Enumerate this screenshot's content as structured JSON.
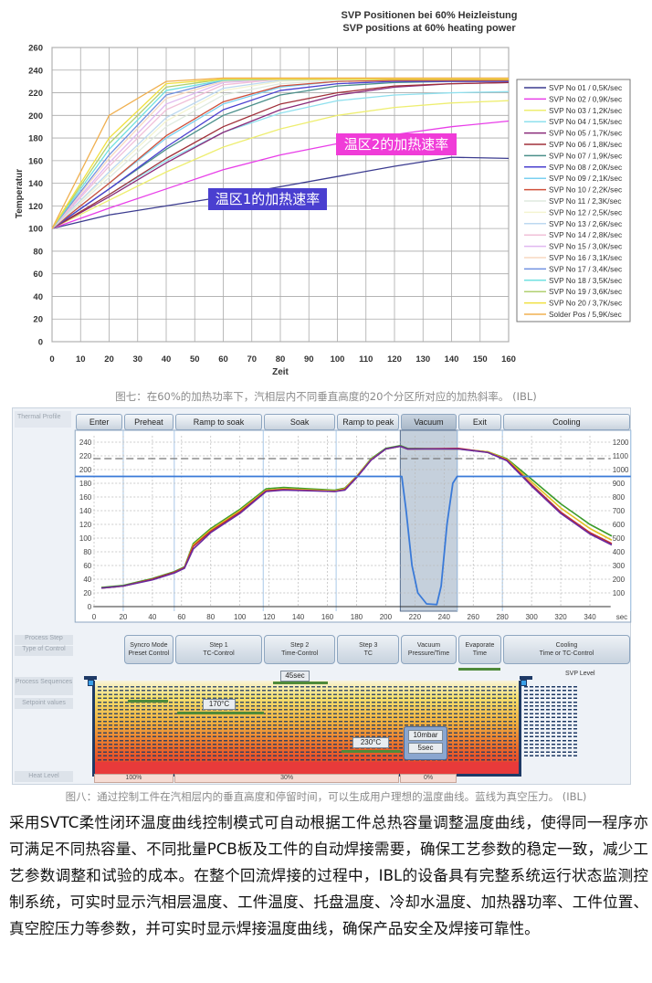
{
  "figure1": {
    "caption": "图七：在60%的加热功率下，汽相层内不同垂直高度的20个分区所对应的加热斜率。 (IBL)",
    "annotation_zone2": "温区2的加热速率",
    "annotation_zone1": "温区1的加热速率",
    "colors": {
      "annotation_zone2": "#f03cd8",
      "annotation_zone1": "#4a3fd0"
    }
  },
  "figure2": {
    "caption": "图八：通过控制工件在汽相层内的垂直高度和停留时间，可以生成用户理想的温度曲线。蓝线为真空压力。 (IBL)",
    "thermal_profile_label": "Thermal Profile",
    "phases": [
      {
        "label": "Enter",
        "start": -13,
        "end": 20
      },
      {
        "label": "Preheat",
        "start": 20,
        "end": 55
      },
      {
        "label": "Ramp to soak",
        "start": 55,
        "end": 116
      },
      {
        "label": "Soak",
        "start": 116,
        "end": 166
      },
      {
        "label": "Ramp to peak",
        "start": 166,
        "end": 210
      },
      {
        "label": "Vacuum",
        "start": 210,
        "end": 249
      },
      {
        "label": "Exit",
        "start": 249,
        "end": 280
      },
      {
        "label": "Cooling",
        "start": 280,
        "end": 368
      }
    ],
    "left_labels": {
      "process_step": "Process Step",
      "type_of_control": "Type of Control",
      "process_sequences": "Process Sequences",
      "setpoint_values": "Setpoint values",
      "heat_level": "Heat Level"
    },
    "steps": [
      {
        "line1": "Syncro Mode",
        "line2": "Preset Control",
        "start": 20,
        "end": 55
      },
      {
        "line1": "Step 1",
        "line2": "TC-Control",
        "start": 55,
        "end": 116
      },
      {
        "line1": "Step 2",
        "line2": "Time-Control",
        "start": 116,
        "end": 166
      },
      {
        "line1": "Step 3",
        "line2": "TC",
        "start": 166,
        "end": 210
      },
      {
        "line1": "Vacuum",
        "line2": "Pressure/Time",
        "start": 210,
        "end": 249
      },
      {
        "line1": "Evaporate",
        "line2": "Time",
        "start": 249,
        "end": 280
      },
      {
        "line1": "Cooling",
        "line2": "Time or TC-Control",
        "start": 280,
        "end": 368
      }
    ],
    "setpoints": {
      "soak_time": "45sec",
      "step1_temp": "170°C",
      "step3_temp": "230°C",
      "vac_pressure": "10mbar",
      "vac_time": "5sec"
    },
    "svp_level_label": "SVP Level",
    "heat_levels": [
      {
        "label": "100%",
        "start": -13,
        "end": 55
      },
      {
        "label": "30%",
        "start": 55,
        "end": 210
      },
      {
        "label": "0%",
        "start": 210,
        "end": 249
      }
    ]
  },
  "paragraph": "采用SVTC柔性闭环温度曲线控制模式可自动根据工件总热容量调整温度曲线，使得同一程序亦可满足不同热容量、不同批量PCB板及工件的自动焊接需要，确保工艺参数的稳定一致，减少工艺参数调整和试验的成本。在整个回流焊接的过程中，IBL的设备具有完整系统运行状态监测控制系统，可实时显示汽相层温度、工件温度、托盘温度、冷却水温度、加热器功率、工件位置、真空腔压力等参数，并可实时显示焊接温度曲线，确保产品安全及焊接可靠性。",
  "chart_data": [
    {
      "type": "line",
      "title": "SVP Positionen bei 60% Heizleistung",
      "subtitle": "SVP positions at 60% heating power",
      "xlabel": "Zeit",
      "ylabel": "Temperatur",
      "xlim": [
        0,
        160
      ],
      "ylim": [
        0,
        260
      ],
      "xticks": [
        0,
        10,
        20,
        30,
        40,
        50,
        60,
        70,
        80,
        90,
        100,
        110,
        120,
        130,
        140,
        150,
        160
      ],
      "yticks": [
        0,
        20,
        40,
        60,
        80,
        100,
        120,
        140,
        160,
        180,
        200,
        220,
        240,
        260
      ],
      "grid": true,
      "legend_position": "right",
      "x": [
        0,
        20,
        40,
        60,
        80,
        100,
        120,
        140,
        160
      ],
      "series": [
        {
          "name": "SVP No 01 / 0,5K/sec",
          "color": "#3b3b8f",
          "values": [
            100,
            112,
            120,
            128,
            137,
            146,
            155,
            163,
            162
          ]
        },
        {
          "name": "SVP No 02 / 0,9K/sec",
          "color": "#e83ee8",
          "values": [
            100,
            118,
            135,
            152,
            165,
            175,
            183,
            190,
            195
          ]
        },
        {
          "name": "SVP No 03 / 1,2K/sec",
          "color": "#eeee70",
          "values": [
            100,
            125,
            150,
            172,
            188,
            200,
            207,
            211,
            213
          ]
        },
        {
          "name": "SVP No 04 / 1,5K/sec",
          "color": "#8fe0ee",
          "values": [
            100,
            130,
            160,
            185,
            202,
            213,
            218,
            220,
            221
          ]
        },
        {
          "name": "SVP No 05 / 1,7K/sec",
          "color": "#8a2b7a",
          "values": [
            100,
            128,
            158,
            185,
            205,
            218,
            225,
            228,
            229
          ]
        },
        {
          "name": "SVP No 06 / 1,8K/sec",
          "color": "#a0303a",
          "values": [
            100,
            130,
            162,
            190,
            210,
            220,
            226,
            228,
            229
          ]
        },
        {
          "name": "SVP No 07 / 1,9K/sec",
          "color": "#4a8f8a",
          "values": [
            100,
            135,
            170,
            200,
            218,
            226,
            229,
            230,
            230
          ]
        },
        {
          "name": "SVP No 08 / 2,0K/sec",
          "color": "#4a3fcf",
          "values": [
            100,
            135,
            172,
            205,
            222,
            228,
            230,
            230,
            230
          ]
        },
        {
          "name": "SVP No 09 / 2,1K/sec",
          "color": "#7ad0f0",
          "values": [
            100,
            140,
            180,
            210,
            225,
            230,
            231,
            231,
            231
          ]
        },
        {
          "name": "SVP No 10 / 2,2K/sec",
          "color": "#d0503a",
          "values": [
            100,
            140,
            182,
            212,
            226,
            230,
            231,
            231,
            231
          ]
        },
        {
          "name": "SVP No 11 / 2,3K/sec",
          "color": "#dfeadf",
          "values": [
            100,
            145,
            190,
            218,
            228,
            231,
            232,
            232,
            232
          ]
        },
        {
          "name": "SVP No 12 / 2,5K/sec",
          "color": "#f4f4d0",
          "values": [
            100,
            148,
            195,
            222,
            230,
            232,
            232,
            232,
            232
          ]
        },
        {
          "name": "SVP No 13 / 2,6K/sec",
          "color": "#bcd8f0",
          "values": [
            100,
            150,
            198,
            224,
            231,
            232,
            232,
            232,
            232
          ]
        },
        {
          "name": "SVP No 14 / 2,8K/sec",
          "color": "#f0c0d8",
          "values": [
            100,
            155,
            205,
            227,
            232,
            232,
            232,
            232,
            232
          ]
        },
        {
          "name": "SVP No 15 / 3,0K/sec",
          "color": "#e0b8f0",
          "values": [
            100,
            158,
            210,
            229,
            232,
            232,
            232,
            232,
            232
          ]
        },
        {
          "name": "SVP No 16 / 3,1K/sec",
          "color": "#f8d8c0",
          "values": [
            100,
            162,
            215,
            230,
            232,
            232,
            232,
            232,
            232
          ]
        },
        {
          "name": "SVP No 17 / 3,4K/sec",
          "color": "#7090e0",
          "values": [
            100,
            165,
            218,
            231,
            232,
            232,
            232,
            232,
            232
          ]
        },
        {
          "name": "SVP No 18 / 3,5K/sec",
          "color": "#70e0e0",
          "values": [
            100,
            170,
            222,
            231,
            232,
            232,
            232,
            232,
            232
          ]
        },
        {
          "name": "SVP No 19 / 3,6K/sec",
          "color": "#b0d070",
          "values": [
            100,
            175,
            225,
            232,
            232,
            232,
            232,
            232,
            232
          ]
        },
        {
          "name": "SVP No 20 / 3,7K/sec",
          "color": "#f0e040",
          "values": [
            100,
            180,
            228,
            232,
            232,
            232,
            232,
            232,
            232
          ]
        },
        {
          "name": "Solder Pos / 5,9K/sec",
          "color": "#f0b050",
          "values": [
            100,
            200,
            230,
            233,
            233,
            233,
            233,
            233,
            233
          ]
        }
      ]
    },
    {
      "type": "line",
      "title": "Thermal Profile",
      "xlabel": "sec",
      "xlim": [
        -13,
        368
      ],
      "ylim": [
        0,
        240
      ],
      "y2lim": [
        0,
        1200
      ],
      "xticks": [
        0,
        20,
        40,
        60,
        80,
        100,
        120,
        140,
        160,
        180,
        200,
        220,
        240,
        260,
        280,
        300,
        320,
        340
      ],
      "yticks": [
        0,
        20,
        40,
        60,
        80,
        100,
        120,
        140,
        160,
        180,
        200,
        220,
        240
      ],
      "y2ticks": [
        100,
        200,
        300,
        400,
        500,
        600,
        700,
        800,
        900,
        1000,
        1100,
        1200
      ],
      "grid": true,
      "dashed_reference_y2": 1080,
      "series": [
        {
          "name": "temperature-green",
          "color": "#3a9a2a",
          "axis": "left",
          "x": [
            5,
            20,
            40,
            55,
            62,
            68,
            80,
            100,
            118,
            130,
            165,
            172,
            180,
            190,
            200,
            210,
            215,
            250,
            270,
            283,
            300,
            320,
            340,
            355
          ],
          "y": [
            28,
            31,
            41,
            51,
            58,
            92,
            114,
            142,
            172,
            174,
            170,
            173,
            190,
            216,
            231,
            235,
            231,
            230,
            226,
            216,
            186,
            150,
            120,
            103
          ]
        },
        {
          "name": "temperature-yellow",
          "color": "#e0c020",
          "axis": "left",
          "x": [
            5,
            20,
            40,
            55,
            62,
            68,
            80,
            100,
            118,
            130,
            165,
            172,
            180,
            190,
            200,
            210,
            215,
            250,
            270,
            283,
            300,
            320,
            340,
            355
          ],
          "y": [
            27,
            30,
            40,
            50,
            57,
            90,
            112,
            140,
            170,
            172,
            169,
            172,
            190,
            215,
            230,
            234,
            230,
            230,
            226,
            215,
            182,
            144,
            114,
            97
          ]
        },
        {
          "name": "temperature-red",
          "color": "#c03030",
          "axis": "left",
          "x": [
            5,
            20,
            40,
            55,
            62,
            68,
            80,
            100,
            118,
            130,
            165,
            172,
            180,
            190,
            200,
            210,
            215,
            250,
            270,
            283,
            300,
            320,
            340,
            355
          ],
          "y": [
            27,
            30,
            40,
            50,
            57,
            88,
            110,
            138,
            169,
            171,
            168,
            171,
            189,
            214,
            230,
            234,
            230,
            231,
            225,
            214,
            178,
            138,
            108,
            92
          ]
        },
        {
          "name": "temperature-purple",
          "color": "#6a2aa0",
          "axis": "left",
          "x": [
            5,
            20,
            40,
            55,
            62,
            68,
            80,
            100,
            118,
            130,
            165,
            172,
            180,
            190,
            200,
            210,
            215,
            250,
            270,
            283,
            300,
            320,
            340,
            355
          ],
          "y": [
            27,
            30,
            39,
            49,
            56,
            84,
            108,
            136,
            168,
            170,
            168,
            170,
            188,
            214,
            230,
            234,
            230,
            230,
            225,
            213,
            176,
            136,
            106,
            90
          ]
        },
        {
          "name": "vacuum-pressure",
          "color": "#3a7ad8",
          "axis": "right",
          "x": [
            -13,
            211,
            214,
            218,
            222,
            228,
            235,
            238,
            242,
            246,
            249,
            368
          ],
          "y": [
            950,
            950,
            700,
            300,
            100,
            20,
            15,
            150,
            600,
            900,
            950,
            950
          ]
        }
      ]
    }
  ]
}
